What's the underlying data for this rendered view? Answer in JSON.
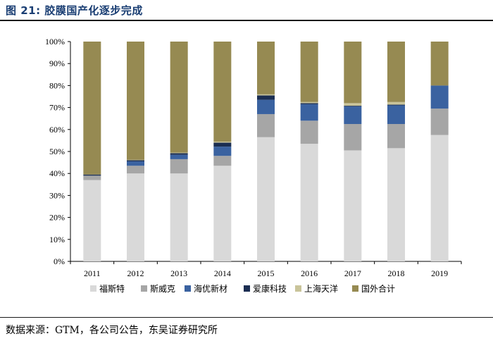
{
  "figure": {
    "title": "图 21: 胶膜国产化逐步完成",
    "source": "数据来源：GTM，各公司公告，东吴证券研究所"
  },
  "chart_data": {
    "type": "bar",
    "stacked": true,
    "categories": [
      "2011",
      "2012",
      "2013",
      "2014",
      "2015",
      "2016",
      "2017",
      "2018",
      "2019"
    ],
    "ylim": [
      0,
      100
    ],
    "yticks": [
      "0%",
      "10%",
      "20%",
      "30%",
      "40%",
      "50%",
      "60%",
      "70%",
      "80%",
      "90%",
      "100%"
    ],
    "legend_position": "bottom",
    "series": [
      {
        "name": "福斯特",
        "color": "#d9d9d9",
        "values": [
          37,
          40,
          40,
          43.5,
          56.5,
          53.5,
          50.5,
          51.5,
          57.5
        ]
      },
      {
        "name": "斯威克",
        "color": "#a6a6a6",
        "values": [
          2,
          3.5,
          6.5,
          4.5,
          10.5,
          10.5,
          12,
          11,
          12
        ]
      },
      {
        "name": "海优新材",
        "color": "#3a62a0",
        "values": [
          0,
          2,
          2,
          4.2,
          6.5,
          7.5,
          8,
          8.5,
          10.5
        ]
      },
      {
        "name": "爱康科技",
        "color": "#1b2e52",
        "values": [
          0.5,
          0.5,
          0.7,
          1.8,
          2,
          0.5,
          0.3,
          0.3,
          0
        ]
      },
      {
        "name": "上海天洋",
        "color": "#c9c49a",
        "values": [
          0,
          0.2,
          0.3,
          0.5,
          0.5,
          0.5,
          1.2,
          1.2,
          0
        ]
      },
      {
        "name": "国外合计",
        "color": "#968a52",
        "values": [
          60.5,
          53.8,
          50.5,
          45.5,
          24,
          27.5,
          28,
          27.5,
          20
        ]
      }
    ]
  }
}
